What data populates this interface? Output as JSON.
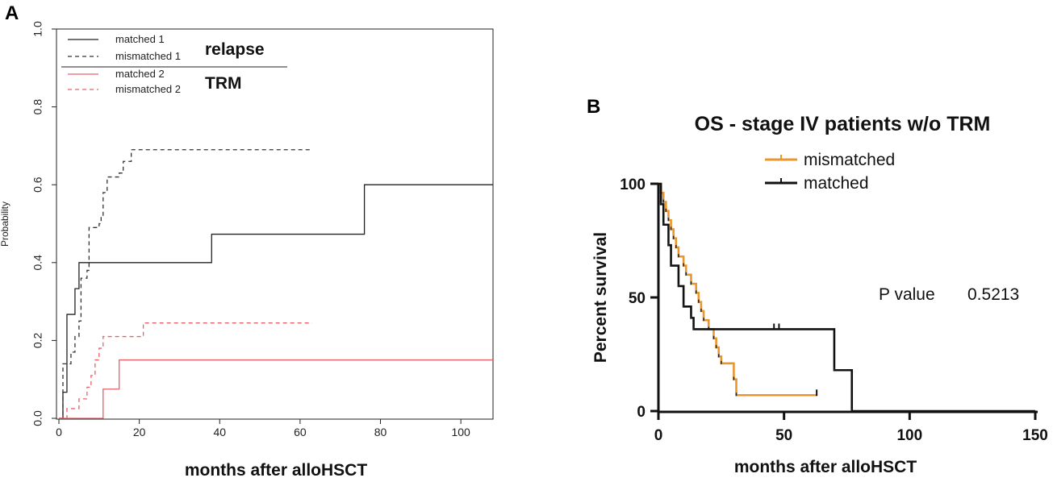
{
  "panels": {
    "a_letter": "A",
    "b_letter": "B"
  },
  "chart_data": [
    {
      "type": "line",
      "panel": "A",
      "title": "",
      "xlabel": "months after alloHSCT",
      "ylabel": "Probability",
      "xlim": [
        0,
        108
      ],
      "ylim": [
        0,
        1
      ],
      "xticks": [
        "0",
        "20",
        "40",
        "60",
        "80",
        "100"
      ],
      "yticks": [
        "0.0",
        "0.2",
        "0.4",
        "0.6",
        "0.8",
        "1.0"
      ],
      "legend": {
        "placement": "top-left",
        "group_relapse": "relapse",
        "group_trm": "TRM",
        "entries": [
          "matched 1",
          "mismatched 1",
          "matched 2",
          "mismatched 2"
        ]
      },
      "series": [
        {
          "name": "matched 1",
          "color": "#222222",
          "dash": "solid",
          "steps": [
            [
              0,
              0
            ],
            [
              1,
              0.067
            ],
            [
              2,
              0.267
            ],
            [
              4,
              0.333
            ],
            [
              5,
              0.4
            ],
            [
              38,
              0.4
            ],
            [
              38,
              0.473
            ],
            [
              76,
              0.473
            ],
            [
              76,
              0.6
            ],
            [
              108,
              0.6
            ]
          ]
        },
        {
          "name": "mismatched 1",
          "color": "#333333",
          "dash": "dashed",
          "steps": [
            [
              0,
              0
            ],
            [
              1,
              0.14
            ],
            [
              2,
              0.14
            ],
            [
              3,
              0.17
            ],
            [
              4,
              0.21
            ],
            [
              5,
              0.25
            ],
            [
              5.5,
              0.36
            ],
            [
              7,
              0.38
            ],
            [
              7.5,
              0.49
            ],
            [
              10,
              0.5
            ],
            [
              10.5,
              0.52
            ],
            [
              11,
              0.58
            ],
            [
              12,
              0.62
            ],
            [
              15,
              0.63
            ],
            [
              16,
              0.66
            ],
            [
              18,
              0.69
            ],
            [
              63,
              0.69
            ]
          ]
        },
        {
          "name": "matched 2",
          "color": "#e8606a",
          "dash": "solid",
          "steps": [
            [
              0,
              0
            ],
            [
              11,
              0
            ],
            [
              11,
              0.075
            ],
            [
              15,
              0.075
            ],
            [
              15,
              0.15
            ],
            [
              108,
              0.15
            ]
          ]
        },
        {
          "name": "mismatched 2",
          "color": "#e8606a",
          "dash": "dashed",
          "steps": [
            [
              0,
              0
            ],
            [
              2,
              0.025
            ],
            [
              5,
              0.05
            ],
            [
              7,
              0.08
            ],
            [
              8,
              0.11
            ],
            [
              9,
              0.15
            ],
            [
              10,
              0.18
            ],
            [
              11,
              0.21
            ],
            [
              21,
              0.21
            ],
            [
              21,
              0.245
            ],
            [
              63,
              0.245
            ]
          ]
        }
      ]
    },
    {
      "type": "line",
      "panel": "B",
      "title": "OS - stage IV patients w/o TRM",
      "xlabel": "months after alloHSCT",
      "ylabel": "Percent survival",
      "xlim": [
        0,
        150
      ],
      "ylim": [
        0,
        100
      ],
      "xticks": [
        "0",
        "50",
        "100",
        "150"
      ],
      "yticks": [
        "0",
        "50",
        "100"
      ],
      "legend": {
        "placement": "top-center",
        "entries": [
          "mismatched",
          "matched"
        ]
      },
      "annotation": {
        "label": "P value",
        "value": "0.5213"
      },
      "series": [
        {
          "name": "mismatched",
          "color": "#e8962f",
          "steps": [
            [
              0,
              100
            ],
            [
              1,
              96
            ],
            [
              2,
              92
            ],
            [
              3,
              88
            ],
            [
              4,
              84
            ],
            [
              5,
              80
            ],
            [
              6,
              76
            ],
            [
              7,
              72
            ],
            [
              8,
              68
            ],
            [
              10,
              64
            ],
            [
              11,
              60
            ],
            [
              13,
              56
            ],
            [
              15,
              52
            ],
            [
              16,
              48
            ],
            [
              17,
              44
            ],
            [
              18,
              40
            ],
            [
              20,
              36
            ],
            [
              22,
              32
            ],
            [
              23,
              28
            ],
            [
              24,
              24
            ],
            [
              25,
              21
            ],
            [
              29,
              21
            ],
            [
              30,
              14
            ],
            [
              31,
              7
            ],
            [
              63,
              7
            ]
          ],
          "censor": [
            [
              63,
              7
            ]
          ]
        },
        {
          "name": "matched",
          "color": "#111111",
          "steps": [
            [
              0,
              100
            ],
            [
              1,
              91
            ],
            [
              2,
              82
            ],
            [
              4,
              73
            ],
            [
              5,
              64
            ],
            [
              8,
              55
            ],
            [
              10,
              46
            ],
            [
              13,
              41
            ],
            [
              14,
              36
            ],
            [
              70,
              36
            ],
            [
              70,
              18
            ],
            [
              77,
              18
            ],
            [
              77,
              0
            ],
            [
              150,
              0
            ]
          ],
          "censor": [
            [
              46,
              36
            ],
            [
              48,
              36
            ]
          ]
        }
      ]
    }
  ]
}
